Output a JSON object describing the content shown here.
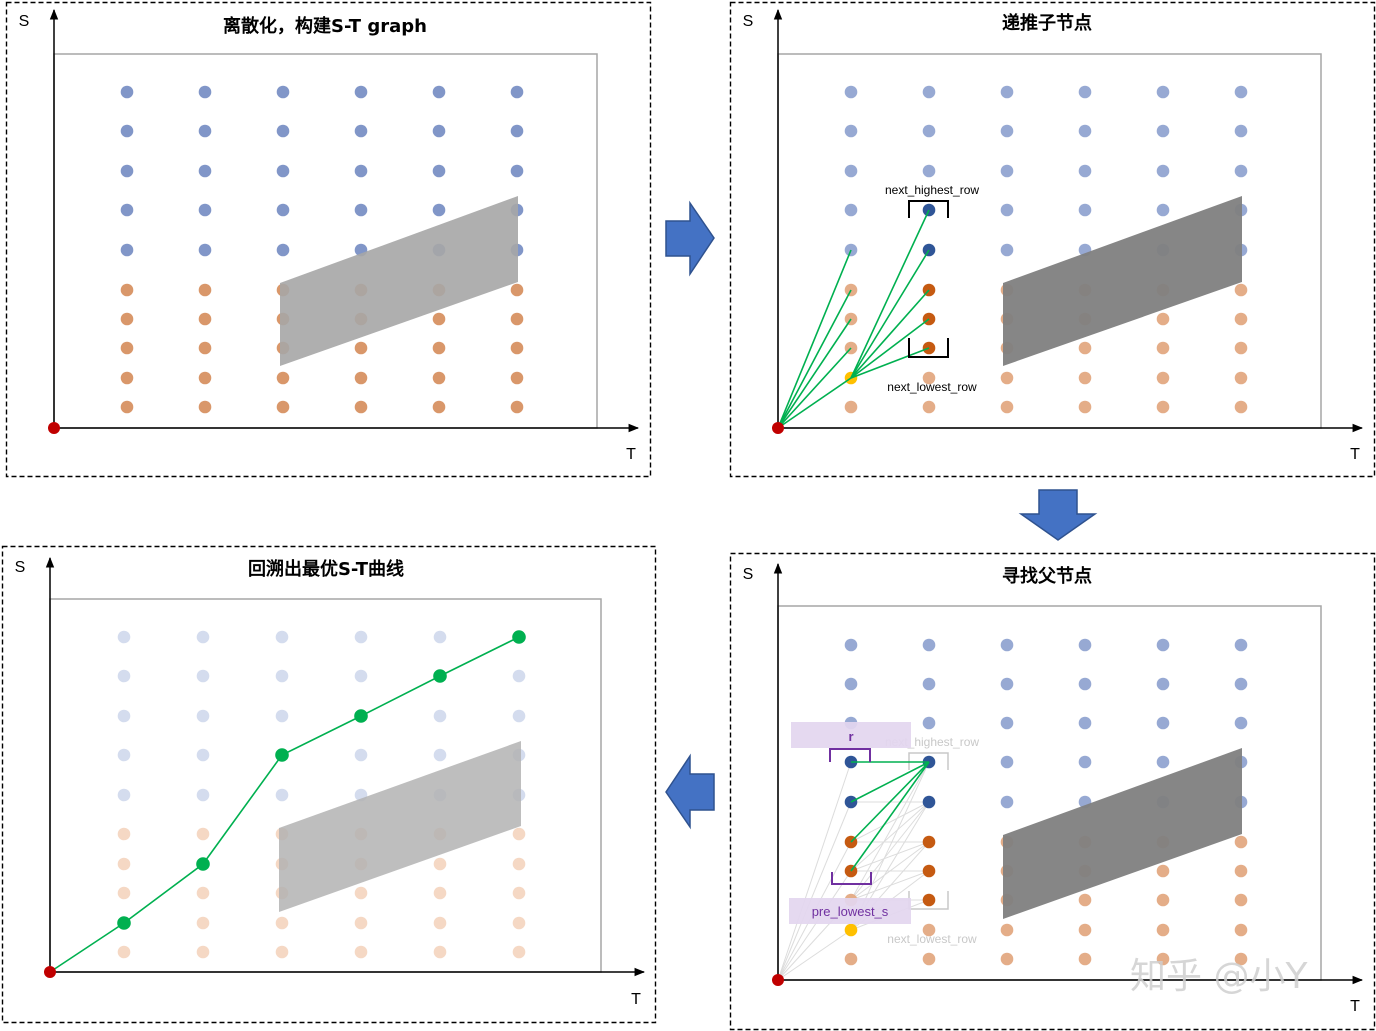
{
  "panels": {
    "discretize": {
      "title": "离散化，构建S-T graph",
      "s_label": "S",
      "t_label": "T"
    },
    "expand_children": {
      "title": "递推子节点",
      "s_label": "S",
      "t_label": "T",
      "upper_bracket_label": "next_highest_row",
      "lower_bracket_label": "next_lowest_row"
    },
    "find_parent": {
      "title": "寻找父节点",
      "s_label": "S",
      "t_label": "T",
      "upper_bracket_label": "next_highest_row",
      "lower_bracket_label": "next_lowest_row",
      "range_label": "r",
      "lower_bound_label": "pre_lowest_s"
    },
    "backtrack": {
      "title": "回溯出最优S-T曲线",
      "s_label": "S",
      "t_label": "T"
    }
  },
  "watermark": "知乎 @小Y",
  "colors": {
    "node_blue": "#8196c8",
    "node_orange": "#d9976a",
    "node_blue_light": "#97a9d3",
    "node_orange_light": "#e4ad88",
    "node_blue_dark": "#2f5597",
    "node_orange_dark": "#c55a11",
    "node_current": "#ffc000",
    "node_blue_faint": "#d4dcee",
    "node_orange_faint": "#f5d8c4",
    "edge_green": "#00b050",
    "edge_faint": "#dcdcdc",
    "origin_red": "#c00000",
    "region_light": "#a6a6a6",
    "region_dark": "#7f7f7f",
    "region_faint": "#b3b3b3",
    "arrow_fill": "#4472c4",
    "arrow_stroke": "#2f528f",
    "bracket_purple": "#7030a0",
    "label_box": "#e3d6ef",
    "faint_label": "#c8c8c8",
    "watermark": "#cfcfcf"
  }
}
